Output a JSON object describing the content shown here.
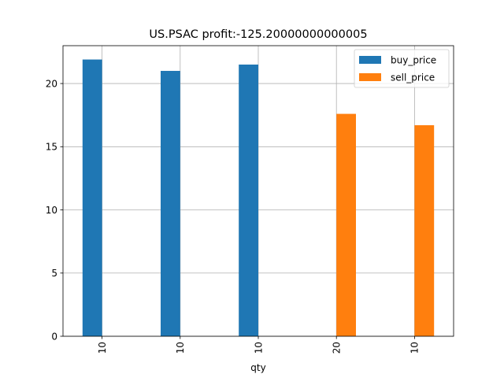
{
  "chart_data": {
    "type": "bar",
    "title": "US.PSAC  profit:-125.20000000000005",
    "xlabel": "qty",
    "ylabel": "",
    "categories": [
      "10",
      "10",
      "10",
      "20",
      "10"
    ],
    "series": [
      {
        "name": "buy_price",
        "color": "#1f77b4",
        "values": [
          21.9,
          21.0,
          21.5,
          null,
          null
        ]
      },
      {
        "name": "sell_price",
        "color": "#ff7f0e",
        "values": [
          null,
          null,
          null,
          17.6,
          16.7
        ]
      }
    ],
    "ylim": [
      0,
      22.995
    ],
    "yticks": [
      0,
      5,
      10,
      15,
      20
    ],
    "grid": true,
    "legend_position": "top-right"
  }
}
